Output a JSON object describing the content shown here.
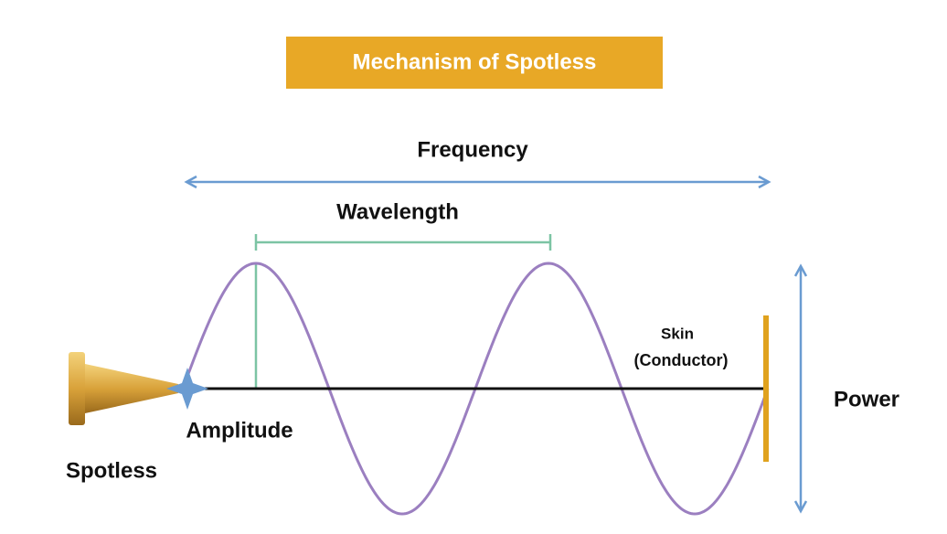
{
  "title": "Mechanism of Spotless",
  "labels": {
    "frequency": "Frequency",
    "wavelength": "Wavelength",
    "skin": "Skin",
    "conductor": "(Conductor)",
    "power": "Power",
    "amplitude": "Amplitude",
    "device": "Spotless"
  }
}
